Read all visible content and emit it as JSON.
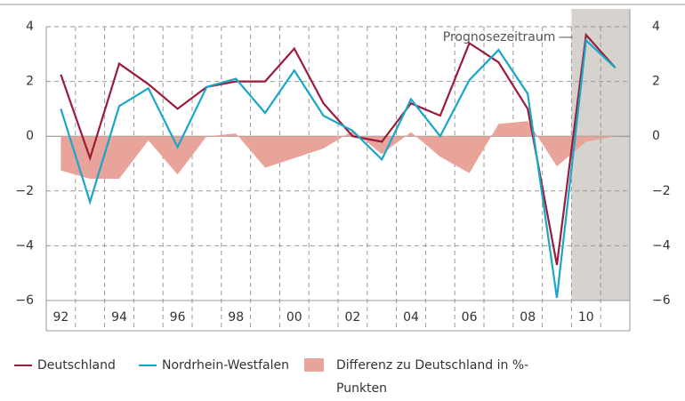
{
  "chart_data": {
    "type": "line",
    "categories": [
      "92",
      null,
      "94",
      null,
      "96",
      null,
      "98",
      null,
      "00",
      null,
      "02",
      null,
      "04",
      null,
      "06",
      null,
      "08",
      null,
      "10",
      null
    ],
    "series": [
      {
        "name": "Deutschland",
        "color": "#9b1b3a",
        "values": [
          2.25,
          -0.8,
          2.65,
          1.9,
          1.0,
          1.8,
          2.0,
          2.0,
          3.2,
          1.2,
          0.0,
          -0.2,
          1.2,
          0.75,
          3.4,
          2.7,
          1.0,
          -4.7,
          3.7,
          2.5
        ]
      },
      {
        "name": "Nordrhein-Westfalen",
        "color": "#1aa6c8",
        "values": [
          1.0,
          -2.4,
          1.1,
          1.75,
          -0.4,
          1.8,
          2.1,
          0.85,
          2.4,
          0.75,
          0.2,
          -0.85,
          1.35,
          0.0,
          2.05,
          3.15,
          1.55,
          -5.9,
          3.5,
          2.5
        ]
      },
      {
        "name": "Differenz zu Deutschland in %-Punkten",
        "type": "area",
        "color": "#e8a49a",
        "values": [
          -1.25,
          -1.55,
          -1.55,
          -0.15,
          -1.4,
          0.0,
          0.1,
          -1.15,
          -0.8,
          -0.45,
          0.2,
          -0.65,
          0.15,
          -0.75,
          -1.35,
          0.45,
          0.55,
          -1.1,
          -0.2,
          0.0
        ]
      }
    ],
    "ylim": [
      -6,
      4
    ],
    "yticks": [
      4,
      2,
      0,
      {
        "value": -2,
        "label": "−2"
      },
      {
        "value": -4,
        "label": "−4"
      },
      {
        "value": -6,
        "label": "−6"
      }
    ],
    "grid": true,
    "annotation": "Prognosezeitraum",
    "forecast_from_index": 18
  }
}
